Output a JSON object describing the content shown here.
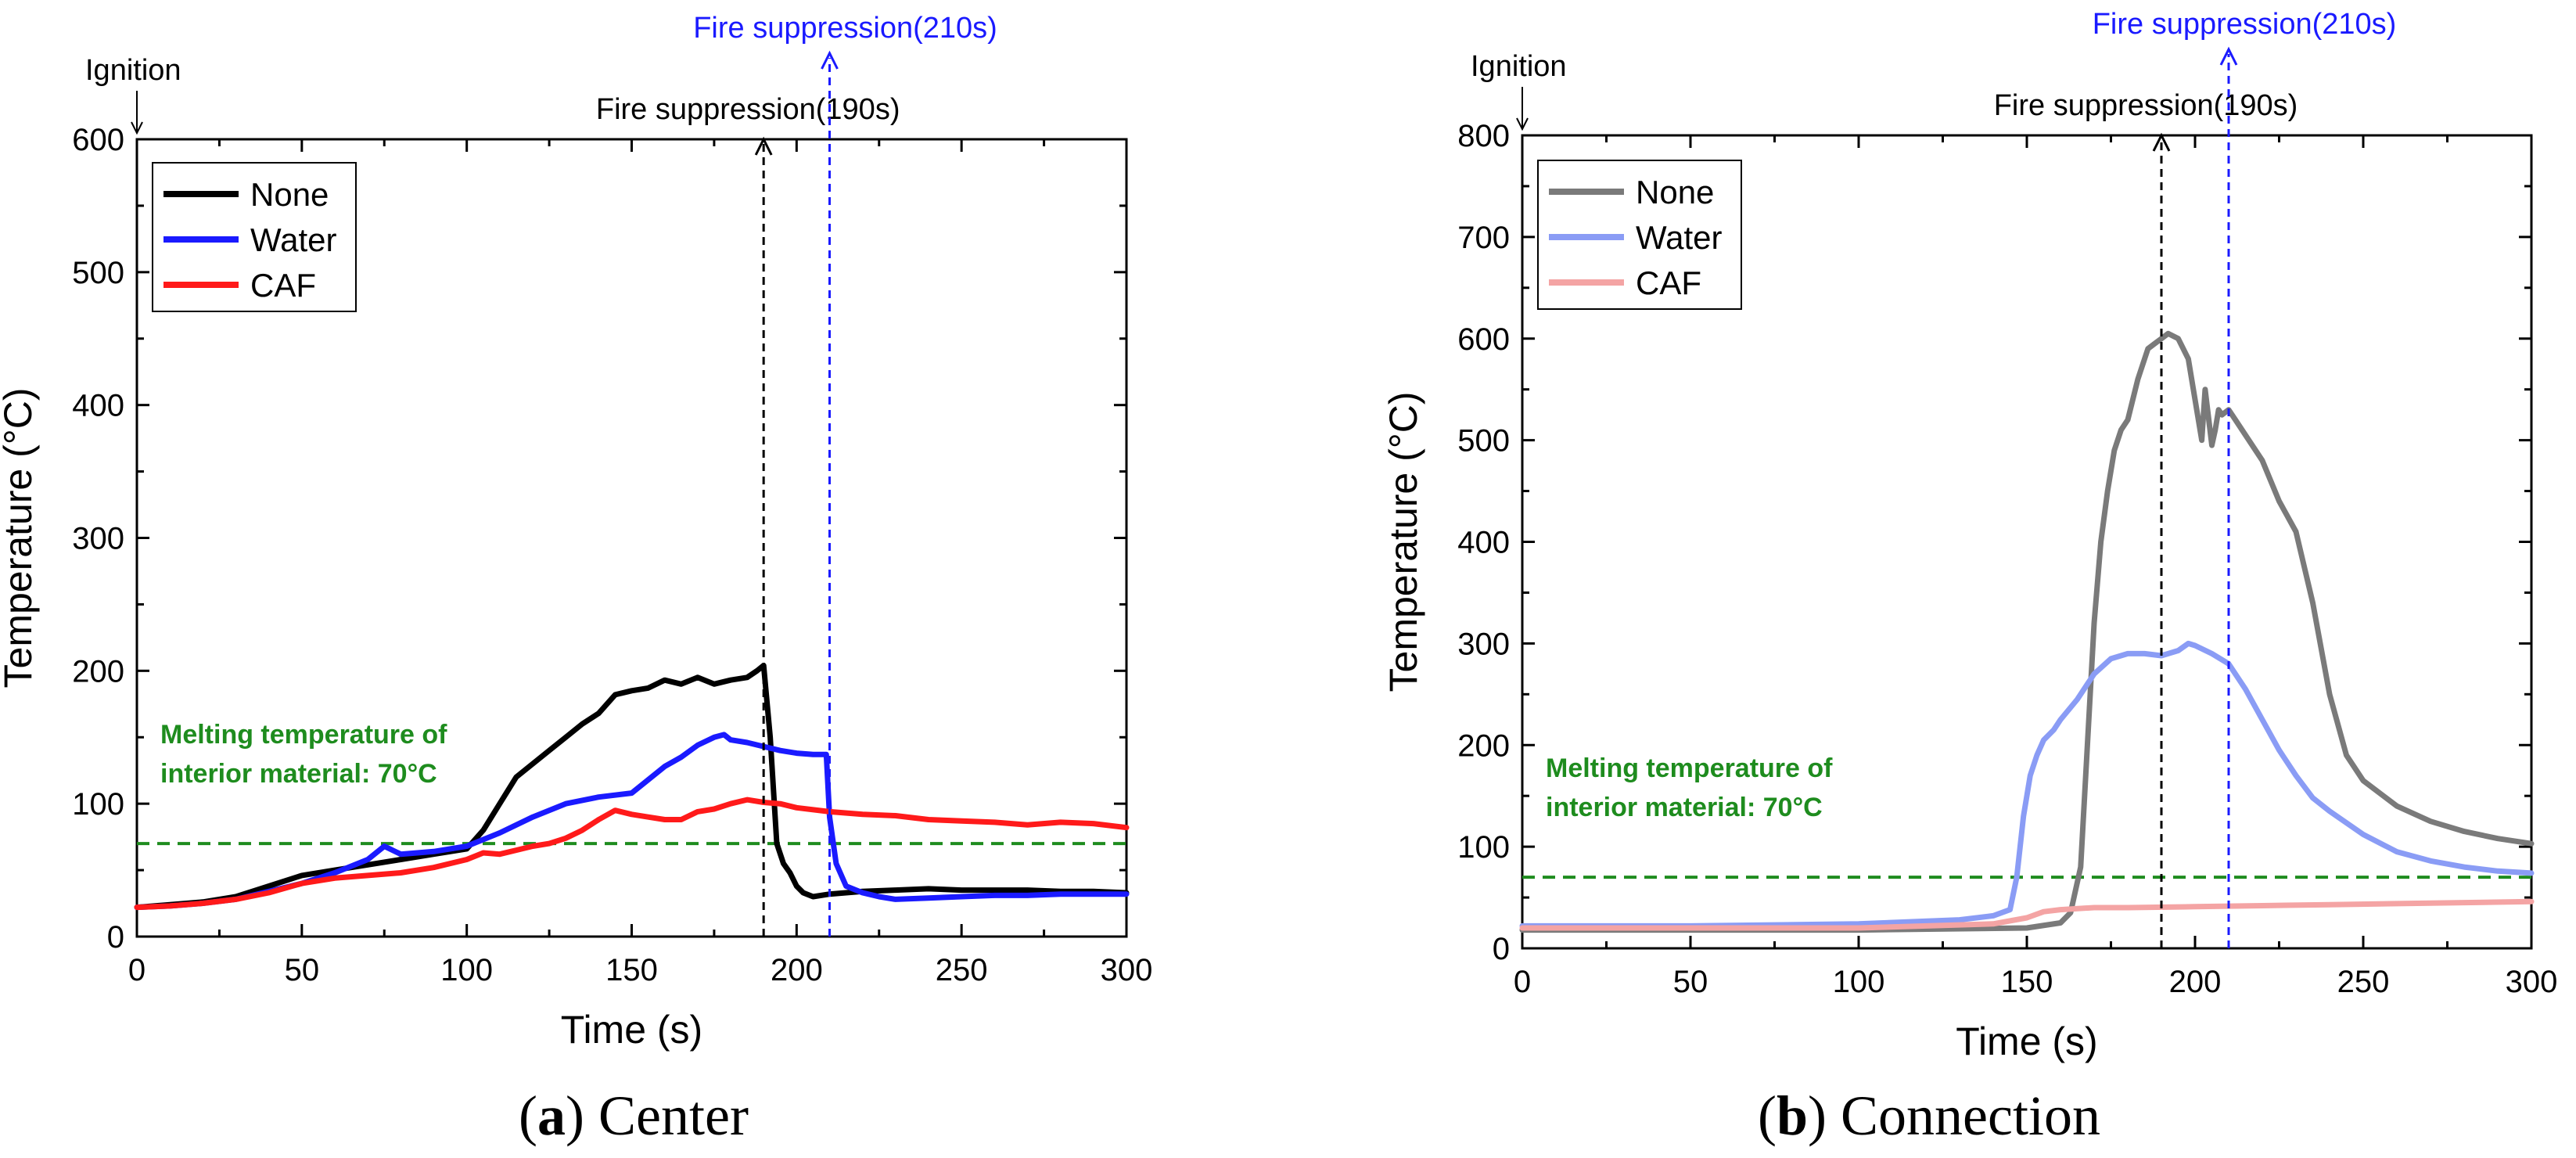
{
  "chart_data": [
    {
      "type": "line",
      "panel_tag": "a",
      "panel_name": "Center",
      "caption_open": "(",
      "caption_close": ") Center",
      "xlabel": "Time (s)",
      "ylabel": "Temperature (°C)",
      "xlim": [
        0,
        300
      ],
      "ylim": [
        0,
        600
      ],
      "xticks": [
        0,
        50,
        100,
        150,
        200,
        250,
        300
      ],
      "yticks": [
        0,
        100,
        200,
        300,
        400,
        500,
        600
      ],
      "ignition_label": "Ignition",
      "ignition_x": 0,
      "suppressions": [
        {
          "label": "Fire suppression(190s)",
          "x": 190,
          "color": "#000000"
        },
        {
          "label": "Fire suppression(210s)",
          "x": 210,
          "color": "#1a1aff"
        }
      ],
      "melting_line": {
        "y": 70,
        "color": "#1e8c1e",
        "label_line1": "Melting temperature of",
        "label_line2": "interior material: 70°C"
      },
      "legend": [
        "None",
        "Water",
        "CAF"
      ],
      "series": [
        {
          "name": "None",
          "color": "#000000",
          "x": [
            0,
            10,
            20,
            30,
            40,
            50,
            60,
            70,
            80,
            90,
            100,
            105,
            110,
            115,
            120,
            125,
            130,
            135,
            140,
            145,
            150,
            155,
            160,
            165,
            170,
            175,
            180,
            185,
            188,
            190,
            192,
            194,
            196,
            198,
            200,
            202,
            205,
            210,
            215,
            220,
            230,
            240,
            250,
            260,
            270,
            280,
            290,
            300
          ],
          "y": [
            22,
            24,
            26,
            30,
            38,
            46,
            50,
            54,
            58,
            62,
            66,
            80,
            100,
            120,
            130,
            140,
            150,
            160,
            168,
            182,
            185,
            187,
            193,
            190,
            195,
            190,
            193,
            195,
            200,
            204,
            150,
            70,
            55,
            48,
            38,
            33,
            30,
            32,
            33,
            34,
            35,
            36,
            35,
            35,
            35,
            34,
            34,
            33
          ]
        },
        {
          "name": "Water",
          "color": "#1a1aff",
          "x": [
            0,
            10,
            20,
            30,
            40,
            50,
            60,
            70,
            75,
            80,
            90,
            100,
            110,
            120,
            130,
            140,
            150,
            155,
            160,
            165,
            170,
            175,
            178,
            180,
            185,
            190,
            195,
            200,
            205,
            209,
            210,
            212,
            215,
            220,
            225,
            230,
            240,
            250,
            260,
            270,
            280,
            290,
            300
          ],
          "y": [
            22,
            23,
            25,
            28,
            34,
            40,
            48,
            58,
            68,
            62,
            64,
            68,
            78,
            90,
            100,
            105,
            108,
            118,
            128,
            135,
            144,
            150,
            152,
            148,
            146,
            143,
            140,
            138,
            137,
            137,
            90,
            55,
            38,
            33,
            30,
            28,
            29,
            30,
            31,
            31,
            32,
            32,
            32
          ]
        },
        {
          "name": "CAF",
          "color": "#ff1a1a",
          "x": [
            0,
            10,
            20,
            30,
            40,
            50,
            60,
            70,
            80,
            90,
            100,
            105,
            110,
            115,
            120,
            125,
            130,
            135,
            140,
            145,
            150,
            155,
            160,
            165,
            170,
            175,
            180,
            185,
            190,
            195,
            200,
            210,
            220,
            230,
            240,
            250,
            260,
            270,
            280,
            290,
            300
          ],
          "y": [
            22,
            23,
            25,
            28,
            33,
            40,
            44,
            46,
            48,
            52,
            58,
            63,
            62,
            65,
            68,
            70,
            74,
            80,
            88,
            95,
            92,
            90,
            88,
            88,
            94,
            96,
            100,
            103,
            101,
            100,
            97,
            94,
            92,
            91,
            88,
            87,
            86,
            84,
            86,
            85,
            82
          ]
        }
      ]
    },
    {
      "type": "line",
      "panel_tag": "b",
      "panel_name": "Connection",
      "caption_open": "(",
      "caption_close": ") Connection",
      "xlabel": "Time (s)",
      "ylabel": "Temperature (°C)",
      "xlim": [
        0,
        300
      ],
      "ylim": [
        0,
        800
      ],
      "xticks": [
        0,
        50,
        100,
        150,
        200,
        250,
        300
      ],
      "yticks": [
        0,
        100,
        200,
        300,
        400,
        500,
        600,
        700,
        800
      ],
      "ignition_label": "Ignition",
      "ignition_x": 0,
      "suppressions": [
        {
          "label": "Fire suppression(190s)",
          "x": 190,
          "color": "#000000"
        },
        {
          "label": "Fire suppression(210s)",
          "x": 210,
          "color": "#1a1aff"
        }
      ],
      "melting_line": {
        "y": 70,
        "color": "#1e8c1e",
        "label_line1": "Melting temperature of",
        "label_line2": "interior material: 70°C"
      },
      "legend": [
        "None",
        "Water",
        "CAF"
      ],
      "series": [
        {
          "name": "None",
          "color": "#7a7a7a",
          "x": [
            0,
            50,
            100,
            150,
            160,
            163,
            166,
            168,
            170,
            172,
            174,
            176,
            178,
            180,
            183,
            186,
            188,
            190,
            192,
            195,
            198,
            200,
            202,
            203,
            205,
            206,
            207,
            208,
            210,
            212,
            215,
            220,
            225,
            230,
            235,
            240,
            245,
            250,
            260,
            270,
            280,
            290,
            300
          ],
          "y": [
            18,
            18,
            18,
            20,
            25,
            35,
            80,
            200,
            320,
            400,
            450,
            490,
            510,
            520,
            560,
            590,
            595,
            600,
            605,
            600,
            580,
            540,
            500,
            550,
            495,
            510,
            530,
            525,
            530,
            520,
            505,
            480,
            440,
            410,
            340,
            250,
            190,
            165,
            140,
            125,
            115,
            108,
            103
          ]
        },
        {
          "name": "Water",
          "color": "#8a9cf5",
          "x": [
            0,
            50,
            100,
            130,
            140,
            145,
            147,
            149,
            151,
            153,
            155,
            158,
            160,
            165,
            170,
            175,
            180,
            185,
            190,
            195,
            198,
            200,
            205,
            210,
            215,
            220,
            225,
            230,
            235,
            240,
            250,
            260,
            270,
            280,
            290,
            300
          ],
          "y": [
            22,
            22,
            24,
            28,
            32,
            38,
            70,
            130,
            170,
            190,
            205,
            215,
            225,
            245,
            270,
            285,
            290,
            290,
            288,
            293,
            300,
            298,
            290,
            280,
            255,
            225,
            195,
            170,
            148,
            135,
            112,
            95,
            86,
            80,
            76,
            74
          ]
        },
        {
          "name": "CAF",
          "color": "#f4a4a4",
          "x": [
            0,
            50,
            100,
            140,
            150,
            155,
            160,
            170,
            180,
            200,
            220,
            240,
            260,
            280,
            300
          ],
          "y": [
            20,
            20,
            20,
            24,
            30,
            36,
            38,
            40,
            40,
            41,
            42,
            43,
            44,
            45,
            46
          ]
        }
      ]
    }
  ]
}
